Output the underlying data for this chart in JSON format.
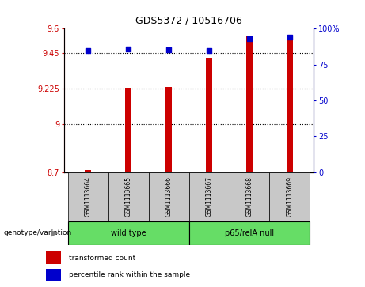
{
  "title": "GDS5372 / 10516706",
  "samples": [
    "GSM1113664",
    "GSM1113665",
    "GSM1113666",
    "GSM1113667",
    "GSM1113668",
    "GSM1113669"
  ],
  "red_values": [
    8.715,
    9.228,
    9.235,
    9.42,
    9.555,
    9.558
  ],
  "blue_pct": [
    85,
    86,
    85.5,
    85,
    93,
    94
  ],
  "ylim_left": [
    8.7,
    9.6
  ],
  "ylim_right": [
    0,
    100
  ],
  "yticks_left": [
    8.7,
    9.0,
    9.225,
    9.45,
    9.6
  ],
  "ytick_labels_left": [
    "8.7",
    "9",
    "9.225",
    "9.45",
    "9.6"
  ],
  "yticks_right": [
    0,
    25,
    50,
    75,
    100
  ],
  "ytick_labels_right": [
    "0",
    "25",
    "50",
    "75",
    "100%"
  ],
  "hlines": [
    9.0,
    9.225,
    9.45
  ],
  "group1_label": "wild type",
  "group2_label": "p65/relA null",
  "bar_color": "#cc0000",
  "dot_color": "#0000cc",
  "legend_red": "transformed count",
  "legend_blue": "percentile rank within the sample",
  "genotype_label": "genotype/variation",
  "sample_box_color": "#c8c8c8",
  "group_box_color": "#66dd66",
  "bar_bottom": 8.7,
  "bar_width": 0.15
}
